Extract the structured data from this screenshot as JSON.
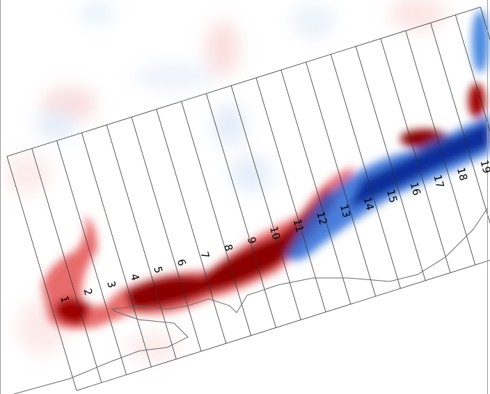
{
  "transect_labels": [
    "1",
    "2",
    "3",
    "4",
    "5",
    "6",
    "7",
    "8",
    "9",
    "10",
    "11",
    "12",
    "13",
    "14",
    "15",
    "16",
    "17",
    "18",
    "19"
  ]
}
